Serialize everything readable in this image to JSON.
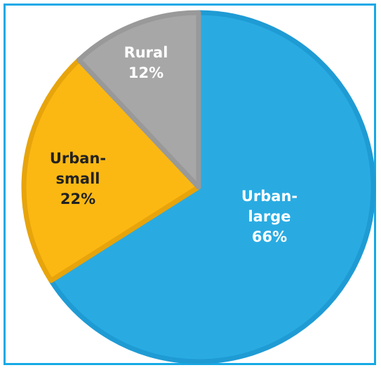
{
  "chart_data": {
    "type": "pie",
    "title": "",
    "slices": [
      {
        "name": "Urban-large",
        "label_lines": [
          "Urban-",
          "large",
          "66%"
        ],
        "value": 66,
        "color": "#29abe2",
        "border": "#1f9bd4",
        "text_color": "#ffffff"
      },
      {
        "name": "Urban-small",
        "label_lines": [
          "Urban-",
          "small",
          "22%"
        ],
        "value": 22,
        "color": "#fbb813",
        "border": "#e7a40b",
        "text_color": "#222222"
      },
      {
        "name": "Rural",
        "label_lines": [
          "Rural",
          "12%"
        ],
        "value": 12,
        "color": "#a7a7a7",
        "border": "#999999",
        "text_color": "#ffffff"
      }
    ],
    "start": "12 o'clock",
    "direction": "clockwise",
    "legend": "none"
  },
  "colors": {
    "frame_border": "#16a9e6",
    "background": "#ffffff"
  }
}
